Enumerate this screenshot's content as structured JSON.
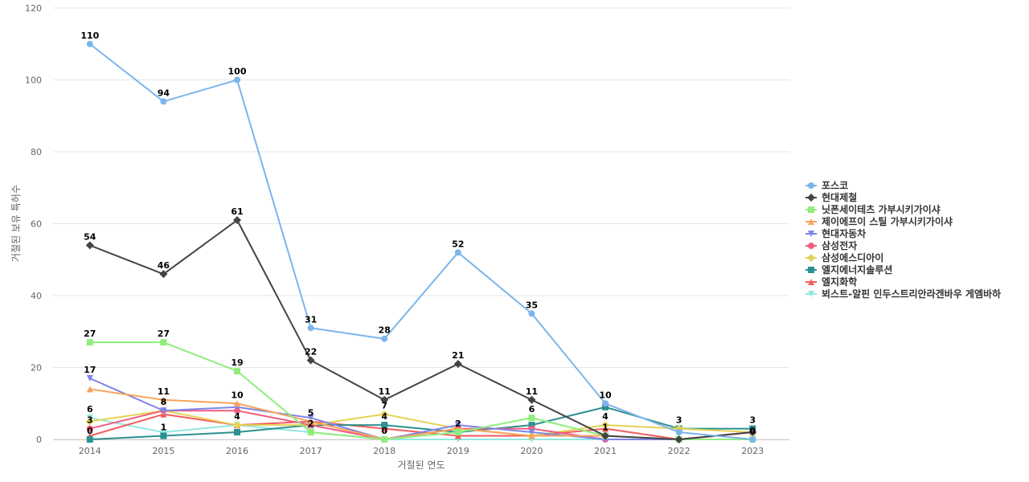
{
  "chart_data": {
    "type": "line",
    "title": "",
    "xlabel": "거절된 연도",
    "ylabel": "거절된 보유 특허수",
    "x": [
      2014,
      2015,
      2016,
      2017,
      2018,
      2019,
      2020,
      2021,
      2022,
      2023
    ],
    "ylim": [
      0,
      120
    ],
    "yticks": [
      0,
      20,
      40,
      60,
      80,
      100,
      120
    ],
    "grid": true,
    "legend_position": "right",
    "series": [
      {
        "name": "포스코",
        "color": "#7cb5ec",
        "marker": "circle",
        "values": [
          110,
          94,
          100,
          31,
          28,
          52,
          35,
          10,
          2,
          0
        ],
        "labels": [
          true,
          true,
          true,
          true,
          true,
          true,
          true,
          true,
          false,
          false
        ]
      },
      {
        "name": "현대제철",
        "color": "#434348",
        "marker": "diamond",
        "values": [
          54,
          46,
          61,
          22,
          11,
          21,
          11,
          1,
          0,
          2
        ],
        "labels": [
          true,
          true,
          true,
          true,
          true,
          true,
          true,
          true,
          false,
          false
        ]
      },
      {
        "name": "닛폰세이테츠 가부시키가이샤",
        "color": "#90ed7d",
        "marker": "square",
        "values": [
          27,
          27,
          19,
          2,
          0,
          2,
          6,
          1,
          0,
          0
        ],
        "labels": [
          true,
          true,
          true,
          true,
          false,
          true,
          true,
          false,
          false,
          false
        ]
      },
      {
        "name": "제이에프이 스틸 가부시키가이샤",
        "color": "#f7a35c",
        "marker": "triangle",
        "values": [
          14,
          11,
          10,
          5,
          0,
          3,
          1,
          1,
          0,
          2
        ],
        "labels": [
          false,
          true,
          true,
          true,
          false,
          false,
          false,
          false,
          false,
          false
        ]
      },
      {
        "name": "현대자동차",
        "color": "#8085e9",
        "marker": "triangle-down",
        "values": [
          17,
          8,
          9,
          6,
          0,
          4,
          2,
          0,
          0,
          0
        ],
        "labels": [
          true,
          false,
          false,
          false,
          false,
          false,
          false,
          false,
          false,
          false
        ]
      },
      {
        "name": "삼성전자",
        "color": "#f15c80",
        "marker": "circle",
        "values": [
          3,
          8,
          8,
          4,
          0,
          3,
          3,
          0,
          0,
          2
        ],
        "labels": [
          true,
          true,
          false,
          false,
          false,
          false,
          false,
          false,
          false,
          false
        ]
      },
      {
        "name": "삼성에스디아이",
        "color": "#e4d354",
        "marker": "diamond",
        "values": [
          5,
          8,
          4,
          4,
          7,
          3,
          1,
          4,
          3,
          2
        ],
        "labels": [
          false,
          false,
          true,
          false,
          true,
          false,
          false,
          true,
          false,
          false
        ]
      },
      {
        "name": "엘지에너지솔루션",
        "color": "#2b908f",
        "marker": "square",
        "values": [
          0,
          1,
          2,
          4,
          4,
          2,
          4,
          9,
          3,
          3
        ],
        "labels": [
          true,
          true,
          false,
          false,
          true,
          false,
          false,
          false,
          true,
          true
        ]
      },
      {
        "name": "엘지화학",
        "color": "#f45b5b",
        "marker": "triangle",
        "values": [
          1,
          7,
          4,
          5,
          3,
          1,
          1,
          3,
          0,
          2
        ],
        "labels": [
          false,
          false,
          false,
          false,
          false,
          false,
          false,
          false,
          false,
          false
        ]
      },
      {
        "name": "뵈스트-알핀 인두스트리안라겐바우 게엠바하",
        "color": "#91e8e1",
        "marker": "triangle-down",
        "values": [
          6,
          2,
          4,
          2,
          0,
          0,
          0,
          0,
          0,
          0
        ],
        "labels": [
          true,
          false,
          false,
          false,
          true,
          false,
          false,
          false,
          false,
          true
        ]
      }
    ]
  }
}
